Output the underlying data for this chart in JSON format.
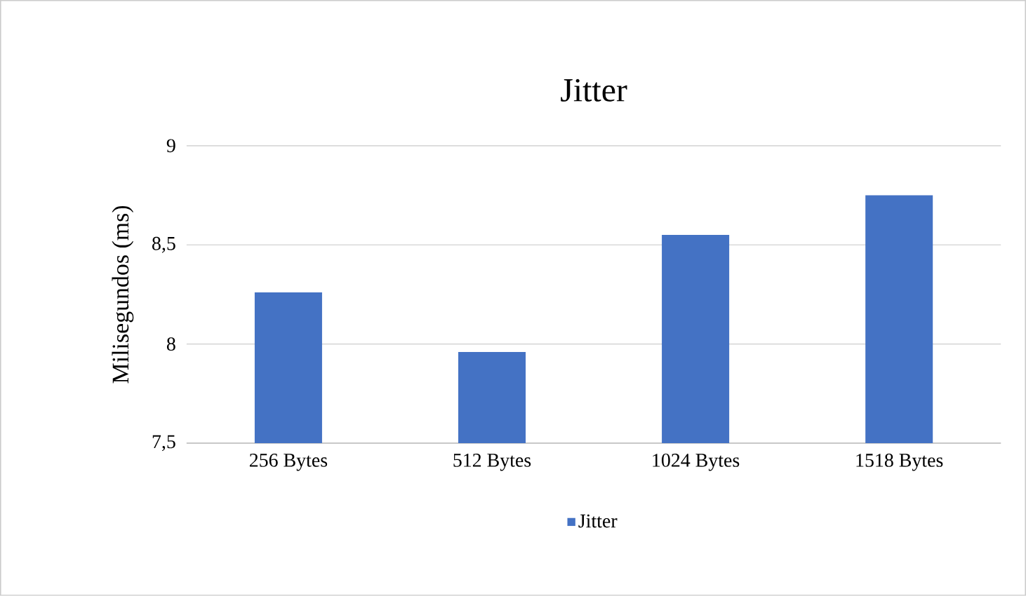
{
  "chart_data": {
    "type": "bar",
    "title": "Jitter",
    "ylabel": "Milisegundos (ms)",
    "categories": [
      "256 Bytes",
      "512 Bytes",
      "1024 Bytes",
      "1518 Bytes"
    ],
    "series": [
      {
        "name": "Jitter",
        "color": "#4472c4",
        "values": [
          8.26,
          7.96,
          8.55,
          8.75
        ]
      }
    ],
    "ylim": [
      7.5,
      9
    ],
    "yticks": [
      {
        "value": 7.5,
        "label": "7,5"
      },
      {
        "value": 8,
        "label": "8"
      },
      {
        "value": 8.5,
        "label": "8,5"
      },
      {
        "value": 9,
        "label": "9"
      }
    ],
    "grid": "y",
    "legend": "bottom"
  }
}
